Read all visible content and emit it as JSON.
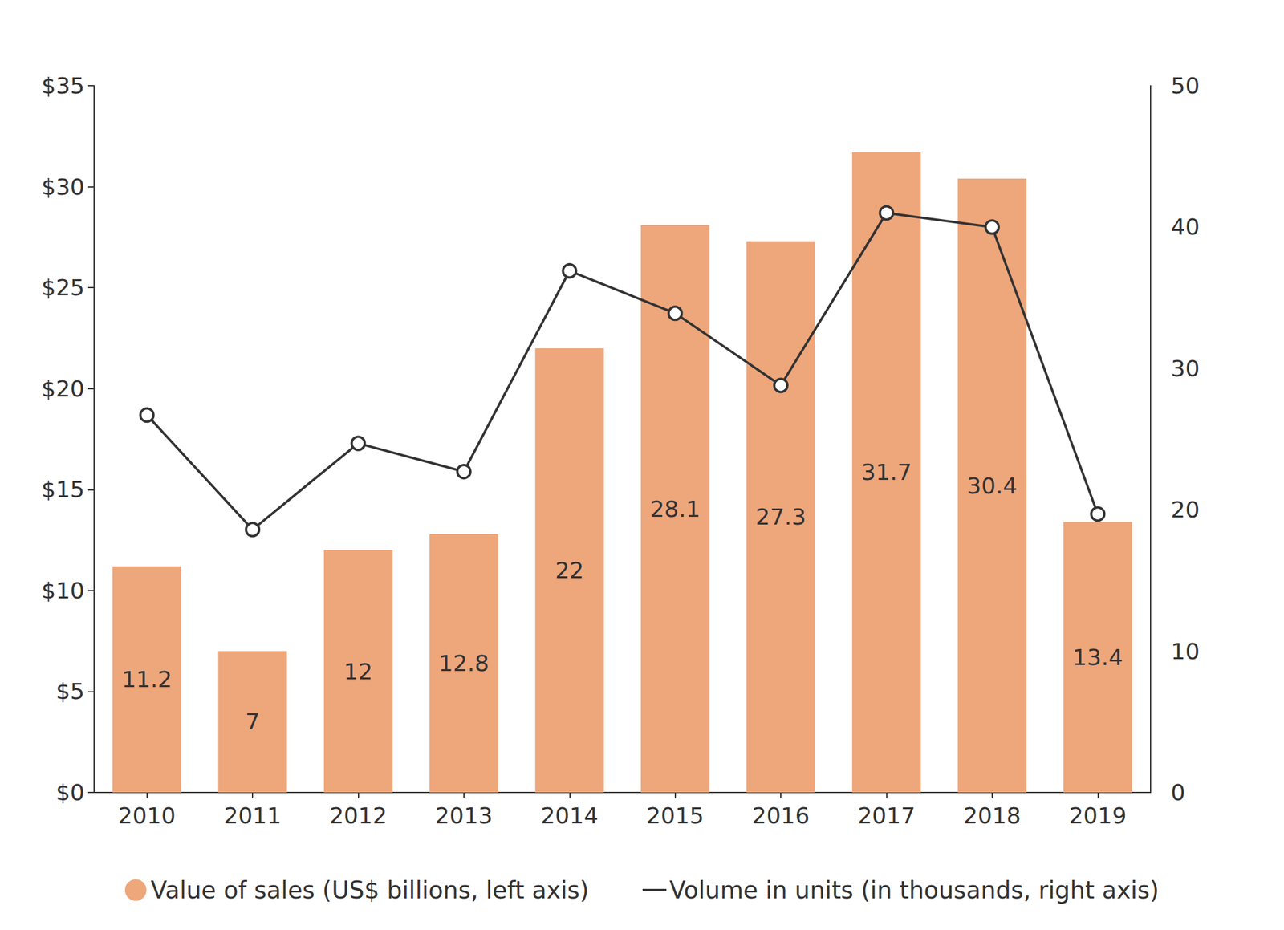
{
  "chart_data": {
    "type": "bar",
    "categories": [
      "2010",
      "2011",
      "2012",
      "2013",
      "2014",
      "2015",
      "2016",
      "2017",
      "2018",
      "2019"
    ],
    "series": [
      {
        "name": "Value of sales (US$ billions, left axis)",
        "type": "bar",
        "color": "#eea67b",
        "data_labels": true,
        "values": [
          11.2,
          7,
          12,
          12.8,
          22,
          28.1,
          27.3,
          31.7,
          30.4,
          13.4
        ]
      },
      {
        "name": "Volume in units (in thousands, right axis)",
        "type": "line",
        "axis": "y2",
        "color": "#333333",
        "marker": "circle",
        "values": [
          26.7,
          18.6,
          24.7,
          22.7,
          36.9,
          33.9,
          28.8,
          41.0,
          40.0,
          19.7
        ]
      }
    ],
    "ylim": [
      0,
      35
    ],
    "yticks": [
      {
        "value": 0,
        "label": "$0"
      },
      {
        "value": 5,
        "label": "$5"
      },
      {
        "value": 10,
        "label": "$10"
      },
      {
        "value": 15,
        "label": "$15"
      },
      {
        "value": 20,
        "label": "$20"
      },
      {
        "value": 25,
        "label": "$25"
      },
      {
        "value": 30,
        "label": "$30"
      },
      {
        "value": 35,
        "label": "$35"
      }
    ],
    "y2lim": [
      0,
      50
    ],
    "y2ticks": [
      0,
      10,
      20,
      30,
      40,
      50
    ],
    "grid": false,
    "legend": "bottom"
  }
}
